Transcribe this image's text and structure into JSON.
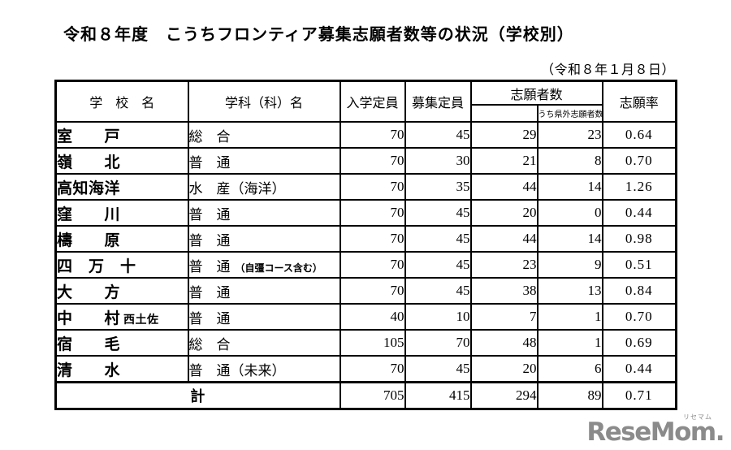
{
  "page": {
    "title": "令和８年度　こうちフロンティア募集志願者数等の状況（学校別）",
    "date_note": "（令和８年１月８日）"
  },
  "table": {
    "headers": {
      "school": "学　校　名",
      "department": "学科（科）名",
      "admission_capacity": "入学定員",
      "recruit_capacity": "募集定員",
      "applicants": "志願者数",
      "applicants_out_of_pref": "うち県外志願者数",
      "application_rate": "志願率"
    },
    "rows": [
      {
        "school": "室　　戸",
        "school_suffix": "",
        "dept": "総　合",
        "dept_note": "",
        "capacity": "70",
        "recruit": "45",
        "applicants": "29",
        "out_pref": "23",
        "rate": "0.64"
      },
      {
        "school": "嶺　　北",
        "school_suffix": "",
        "dept": "普　通",
        "dept_note": "",
        "capacity": "70",
        "recruit": "30",
        "applicants": "21",
        "out_pref": "8",
        "rate": "0.70"
      },
      {
        "school": "高知海洋",
        "school_suffix": "",
        "dept": "水　産（海洋）",
        "dept_note": "",
        "capacity": "70",
        "recruit": "35",
        "applicants": "44",
        "out_pref": "14",
        "rate": "1.26"
      },
      {
        "school": "窪　　川",
        "school_suffix": "",
        "dept": "普　通",
        "dept_note": "",
        "capacity": "70",
        "recruit": "45",
        "applicants": "20",
        "out_pref": "0",
        "rate": "0.44"
      },
      {
        "school": "檮　　原",
        "school_suffix": "",
        "dept": "普　通",
        "dept_note": "",
        "capacity": "70",
        "recruit": "45",
        "applicants": "44",
        "out_pref": "14",
        "rate": "0.98"
      },
      {
        "school": "四　万　十",
        "school_suffix": "",
        "dept": "普　通",
        "dept_note": "（自彊コース含む）",
        "capacity": "70",
        "recruit": "45",
        "applicants": "23",
        "out_pref": "9",
        "rate": "0.51"
      },
      {
        "school": "大　　方",
        "school_suffix": "",
        "dept": "普　通",
        "dept_note": "",
        "capacity": "70",
        "recruit": "45",
        "applicants": "38",
        "out_pref": "13",
        "rate": "0.84"
      },
      {
        "school": "中　　村",
        "school_suffix": "西土佐",
        "dept": "普　通",
        "dept_note": "",
        "capacity": "40",
        "recruit": "10",
        "applicants": "7",
        "out_pref": "1",
        "rate": "0.70"
      },
      {
        "school": "宿　　毛",
        "school_suffix": "",
        "dept": "総　合",
        "dept_note": "",
        "capacity": "105",
        "recruit": "70",
        "applicants": "48",
        "out_pref": "1",
        "rate": "0.69"
      },
      {
        "school": "清　　水",
        "school_suffix": "",
        "dept": "普　通（未来）",
        "dept_note": "",
        "capacity": "70",
        "recruit": "45",
        "applicants": "20",
        "out_pref": "6",
        "rate": "0.44"
      }
    ],
    "total": {
      "label": "計",
      "capacity": "705",
      "recruit": "415",
      "applicants": "294",
      "out_pref": "89",
      "rate": "0.71"
    }
  },
  "logo": {
    "text": "ReseMom.",
    "ruby": "リセマム",
    "color": "#8b8b8b"
  }
}
